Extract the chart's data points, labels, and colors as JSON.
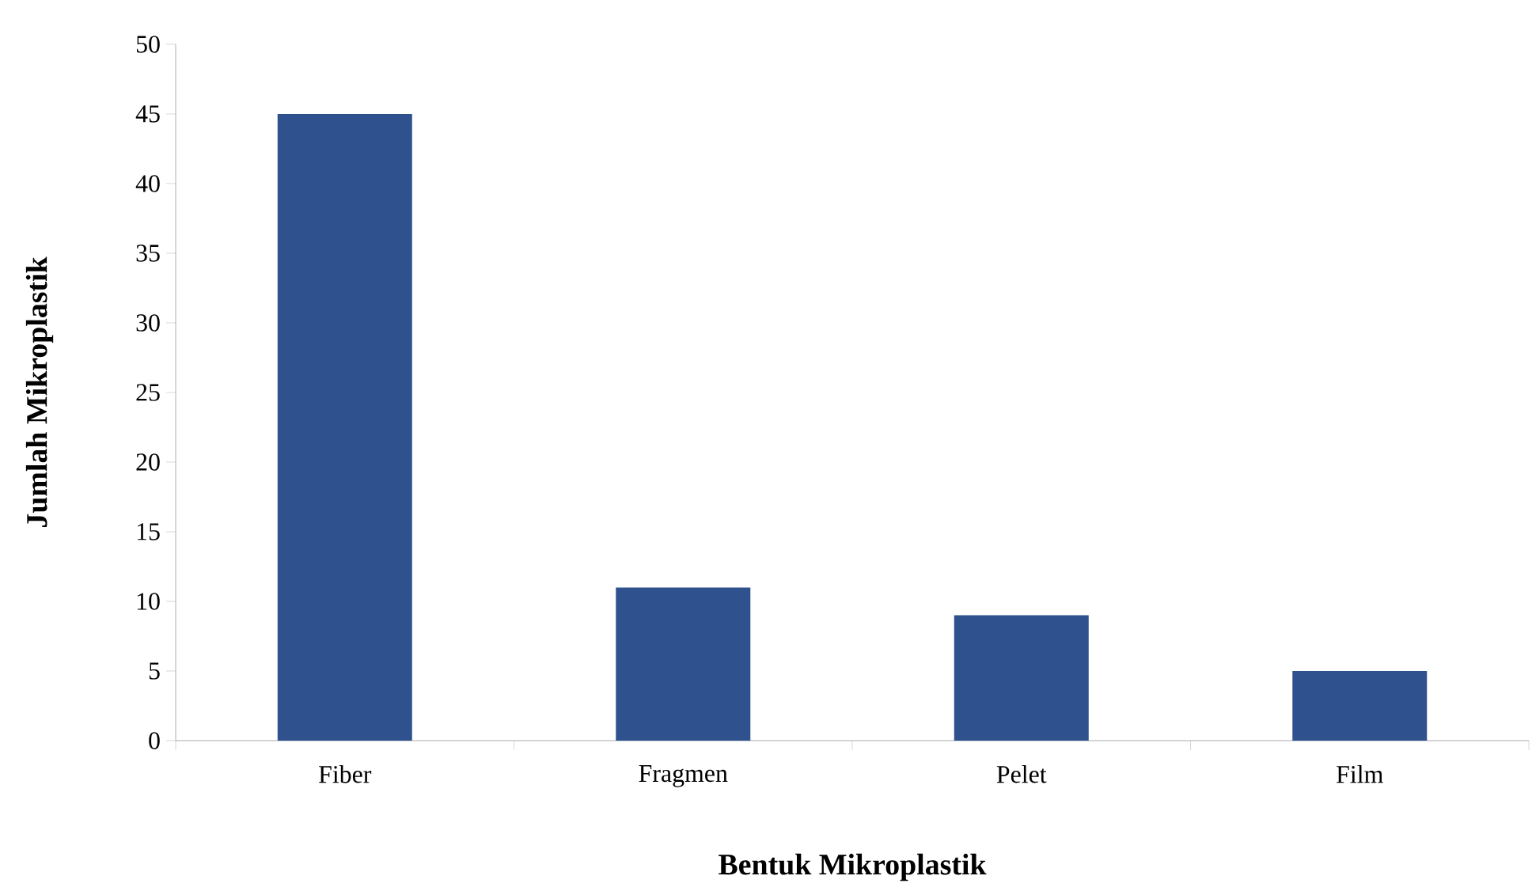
{
  "chart_data": {
    "type": "bar",
    "xlabel": "Bentuk Mikroplastik",
    "ylabel": "Jumlah Mikroplastik",
    "categories": [
      "Fiber",
      "Fragmen",
      "Pelet",
      "Film"
    ],
    "values": [
      45,
      11,
      9,
      5
    ],
    "color": "#2f528f",
    "ylim": [
      0,
      50
    ],
    "yticks": [
      0,
      5,
      10,
      15,
      20,
      25,
      30,
      35,
      40,
      45,
      50
    ]
  }
}
